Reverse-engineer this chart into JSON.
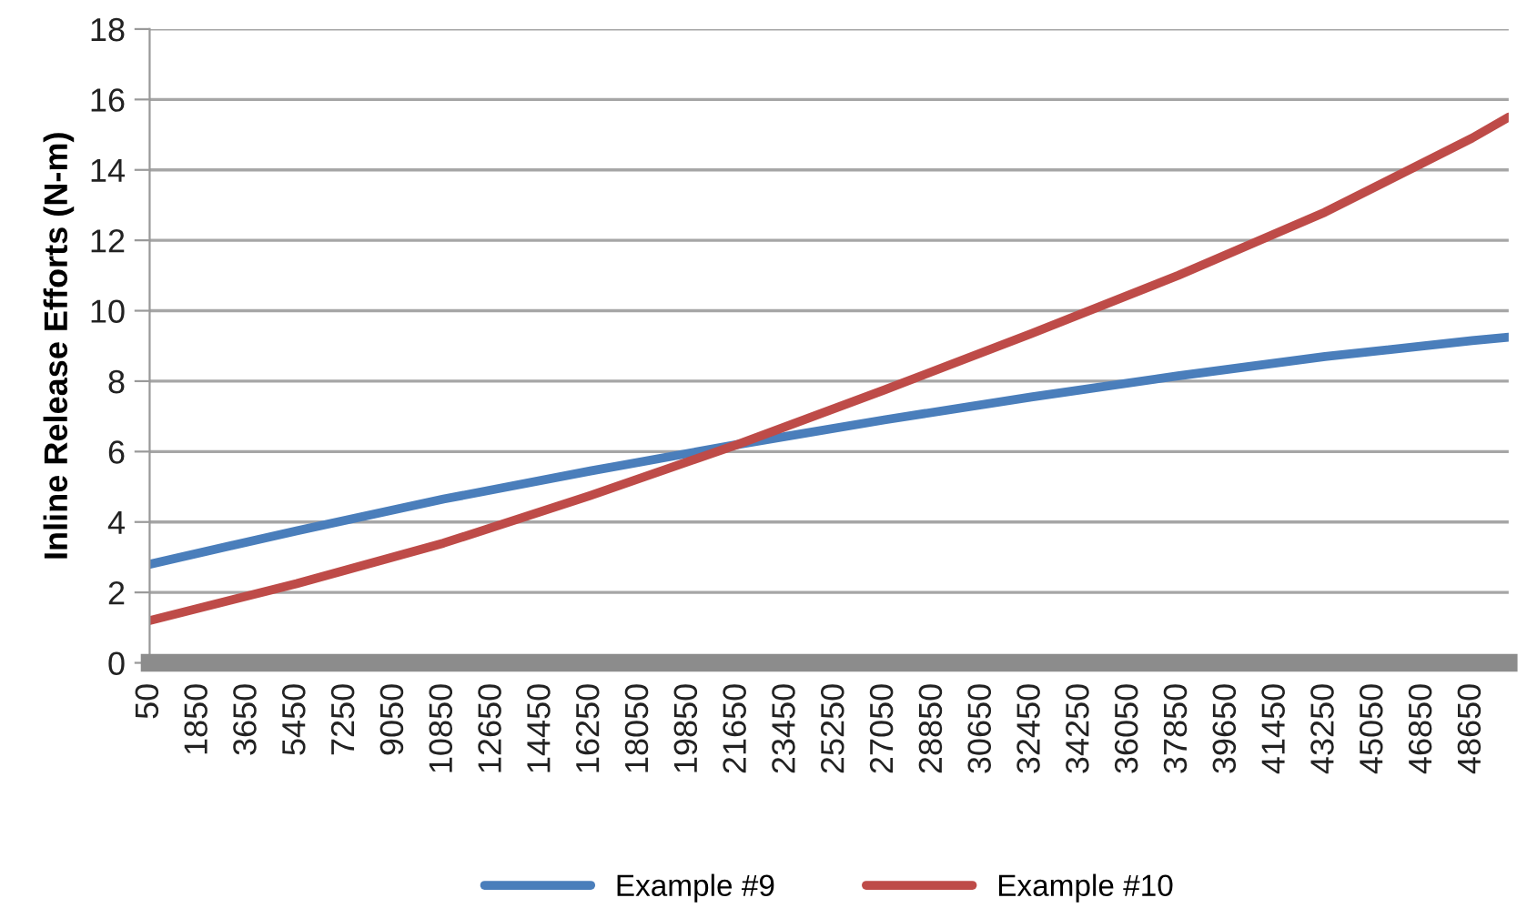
{
  "chart_data": {
    "type": "line",
    "ylabel": "Inline Release Efforts (N-m)",
    "x": [
      50,
      5450,
      10850,
      16250,
      21650,
      27050,
      32450,
      37850,
      43250,
      48650,
      50000
    ],
    "series": [
      {
        "name": "Example #9",
        "color": "#4a7ebb",
        "values": [
          2.8,
          3.75,
          4.65,
          5.45,
          6.2,
          6.9,
          7.55,
          8.15,
          8.7,
          9.15,
          9.25
        ]
      },
      {
        "name": "Example #10",
        "color": "#be4b48",
        "values": [
          1.2,
          2.25,
          3.4,
          4.75,
          6.2,
          7.75,
          9.35,
          11.0,
          12.8,
          14.9,
          15.5
        ]
      }
    ],
    "xlim": [
      50,
      50000
    ],
    "xticks": [
      50,
      1850,
      3650,
      5450,
      7250,
      9050,
      10850,
      12650,
      14450,
      16250,
      18050,
      19850,
      21650,
      23450,
      25250,
      27050,
      28850,
      30650,
      32450,
      34250,
      36050,
      37850,
      39650,
      41450,
      43250,
      45050,
      46850,
      48650
    ],
    "ylim": [
      0,
      18
    ],
    "yticks": [
      0,
      2,
      4,
      6,
      8,
      10,
      12,
      14,
      16,
      18
    ],
    "grid": "y",
    "legend": "bottom",
    "marker": "none",
    "line_style": "solid"
  }
}
